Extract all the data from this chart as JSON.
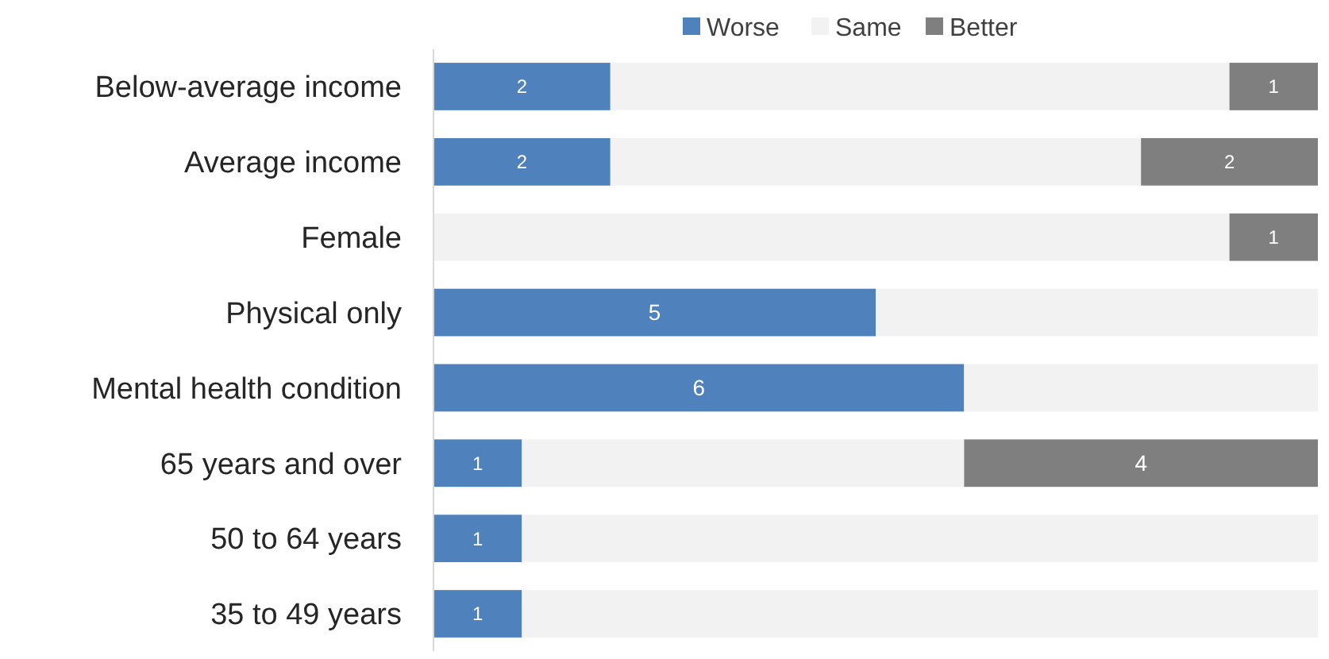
{
  "chart_data": {
    "type": "bar",
    "orientation": "horizontal",
    "stacked": true,
    "legend": "top",
    "categories": [
      "Below-average income",
      "Average income",
      "Female",
      "Physical only",
      "Mental health condition",
      "65 years and over",
      "50 to 64 years",
      "35 to 49 years"
    ],
    "series": [
      {
        "name": "Worse",
        "color": "#4f81bd",
        "values": [
          2,
          2,
          0,
          5,
          6,
          1,
          1,
          1
        ],
        "value_labels": [
          "2",
          "2",
          null,
          "5",
          "6",
          "1",
          "1",
          "1"
        ]
      },
      {
        "name": "Same",
        "color": "#f2f2f2",
        "values": [
          7,
          6,
          9,
          5,
          4,
          5,
          9,
          9
        ]
      },
      {
        "name": "Better",
        "color": "#7f7f7f",
        "values": [
          1,
          2,
          1,
          0,
          0,
          4,
          0,
          0
        ],
        "value_labels": [
          "1",
          "2",
          "1",
          null,
          null,
          "4",
          null,
          null
        ]
      }
    ]
  }
}
